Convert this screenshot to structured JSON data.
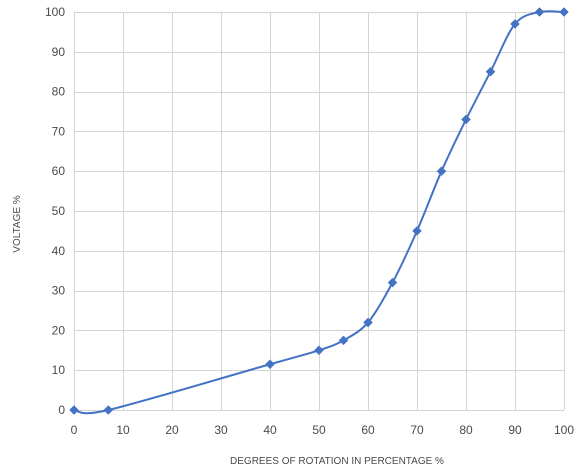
{
  "chart_data": {
    "type": "line",
    "title": "",
    "xlabel": "DEGREES OF ROTATION IN PERCENTAGE %",
    "ylabel": "VOLTAGE %",
    "xlim": [
      0,
      100
    ],
    "ylim": [
      0,
      100
    ],
    "xticks": [
      0,
      10,
      20,
      30,
      40,
      50,
      60,
      70,
      80,
      90,
      100
    ],
    "yticks": [
      0,
      10,
      20,
      30,
      40,
      50,
      60,
      70,
      80,
      90,
      100
    ],
    "grid": true,
    "legend": "none",
    "series": [
      {
        "color": "#4472c4",
        "marker": "diamond",
        "smooth": true,
        "x": [
          0,
          7,
          40,
          50,
          55,
          60,
          65,
          70,
          75,
          80,
          85,
          90,
          95,
          100
        ],
        "y": [
          0,
          0,
          11.5,
          15,
          17.5,
          22,
          32,
          45,
          60,
          73,
          85,
          97,
          100,
          100
        ]
      }
    ]
  }
}
